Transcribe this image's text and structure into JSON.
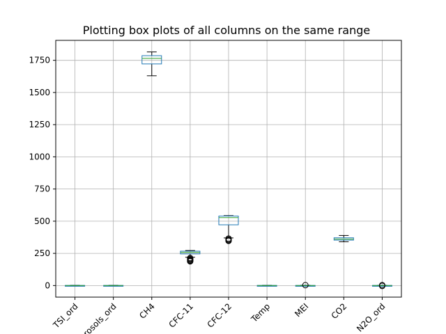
{
  "chart_data": {
    "type": "box",
    "title": "Plotting box plots of all columns on the same range",
    "xlabel": "",
    "ylabel": "",
    "ylim": [
      -90,
      1905
    ],
    "yticks": [
      0,
      250,
      500,
      750,
      1000,
      1250,
      1500,
      1750
    ],
    "grid": true,
    "colors": {
      "box": "#1f77b4",
      "median": "#2ca02c",
      "whisker": "#000000"
    },
    "categories": [
      "TSI_ord",
      "Aerosols_ord",
      "CH4",
      "CFC-11",
      "CFC-12",
      "Temp",
      "MEI",
      "CO2",
      "N2O_ord"
    ],
    "boxes": [
      {
        "label": "TSI_ord",
        "whislo": -2,
        "q1": -1,
        "med": 0,
        "q3": 1,
        "whishi": 2,
        "fliers": []
      },
      {
        "label": "Aerosols_ord",
        "whislo": -2,
        "q1": -1,
        "med": 0,
        "q3": 1,
        "whishi": 2,
        "fliers": []
      },
      {
        "label": "CH4",
        "whislo": 1630,
        "q1": 1722,
        "med": 1765,
        "q3": 1786,
        "whishi": 1815,
        "fliers": []
      },
      {
        "label": "CFC-11",
        "whislo": 220,
        "q1": 246,
        "med": 258,
        "q3": 267,
        "whishi": 272,
        "fliers": [
          214,
          208,
          202,
          196,
          191,
          188
        ]
      },
      {
        "label": "CFC-12",
        "whislo": 370,
        "q1": 472,
        "med": 528,
        "q3": 540,
        "whishi": 543,
        "fliers": [
          365,
          358,
          352,
          347
        ]
      },
      {
        "label": "Temp",
        "whislo": -2,
        "q1": -1,
        "med": 0,
        "q3": 1,
        "whishi": 2,
        "fliers": []
      },
      {
        "label": "MEI",
        "whislo": -1.6,
        "q1": -0.4,
        "med": 0.2,
        "q3": 0.8,
        "whishi": 2.3,
        "fliers": [
          3.0
        ]
      },
      {
        "label": "CO2",
        "whislo": 340,
        "q1": 353,
        "med": 361,
        "q3": 371,
        "whishi": 389,
        "fliers": []
      },
      {
        "label": "N2O_ord",
        "whislo": -2,
        "q1": -1,
        "med": 0,
        "q3": 1,
        "whishi": 2,
        "fliers": [
          3,
          -3
        ]
      }
    ]
  }
}
